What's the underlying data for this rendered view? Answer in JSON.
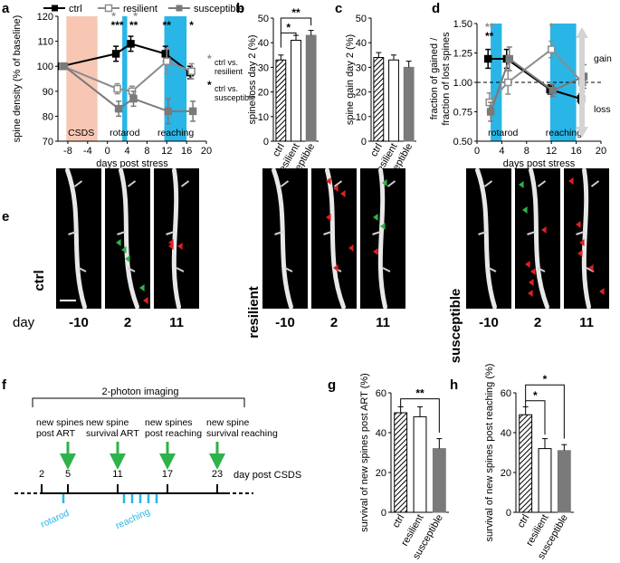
{
  "panels": {
    "a": "a",
    "b": "b",
    "c": "c",
    "d": "d",
    "e": "e",
    "f": "f",
    "g": "g",
    "h": "h"
  },
  "legend": {
    "ctrl": "ctrl",
    "resilient": "resilient",
    "susceptible": "susceptible"
  },
  "colors": {
    "ctrl": "#000000",
    "resilient": "#8c8c8c",
    "susceptible": "#7a7a7a",
    "csds": "#f7c7b4",
    "rotarod": "#29b6e6",
    "reaching": "#29b6e6",
    "green_arrow": "#2db34a",
    "red_arrow": "#e02020"
  },
  "chart_data": [
    {
      "panel": "a",
      "type": "line",
      "xlabel": "days post stress",
      "ylabel": "spine density (% of baseline)",
      "xticks": [
        -8,
        -4,
        0,
        4,
        8,
        12,
        16,
        20
      ],
      "yticks": [
        70,
        80,
        90,
        100,
        110,
        120
      ],
      "xlim": [
        -10,
        20
      ],
      "ylim": [
        70,
        120
      ],
      "x": [
        -9,
        2,
        5,
        12,
        17
      ],
      "series": [
        {
          "name": "ctrl",
          "values": [
            100,
            105,
            109,
            105,
            97.5
          ],
          "errors": [
            0,
            3,
            3,
            3,
            2.5
          ]
        },
        {
          "name": "resilient",
          "values": [
            100,
            91,
            90,
            102,
            98
          ],
          "errors": [
            0,
            2,
            2,
            5,
            3
          ]
        },
        {
          "name": "susceptible",
          "values": [
            100,
            83,
            87,
            82,
            82
          ],
          "errors": [
            0,
            3,
            3,
            5,
            4
          ]
        }
      ],
      "regions": [
        {
          "label": "CSDS",
          "from": -8.3,
          "to": -2
        },
        {
          "label": "rotarod",
          "from": 3,
          "to": 4
        },
        {
          "label": "reaching",
          "from": 11.5,
          "to": 16
        }
      ],
      "significance": {
        "gray": [
          "*",
          "*"
        ],
        "black": [
          "***",
          "**",
          "**",
          "*"
        ],
        "note_gray": "* ctrl vs. resilient",
        "note_black": "* ctrl vs. susceptible"
      }
    },
    {
      "panel": "b",
      "type": "bar",
      "ylabel": "spine loss day 2 (%)",
      "categories": [
        "ctrl",
        "resilient",
        "susceptible"
      ],
      "values": [
        33,
        41,
        43
      ],
      "errors": [
        2,
        2,
        2
      ],
      "ylim": [
        0,
        50
      ],
      "yticks": [
        0,
        10,
        20,
        30,
        40,
        50
      ],
      "significance": [
        "*",
        "**"
      ]
    },
    {
      "panel": "c",
      "type": "bar",
      "ylabel": "spine gain day 2 (%)",
      "categories": [
        "ctrl",
        "resilient",
        "susceptible"
      ],
      "values": [
        34,
        33,
        30
      ],
      "errors": [
        2,
        2,
        2.5
      ],
      "ylim": [
        0,
        50
      ],
      "yticks": [
        0,
        10,
        20,
        30,
        40,
        50
      ]
    },
    {
      "panel": "d",
      "type": "line",
      "xlabel": "days post stress",
      "ylabel": "fraction of gained / fraction of lost spines",
      "xticks": [
        0,
        4,
        8,
        12,
        16,
        20
      ],
      "yticks": [
        0.5,
        0.75,
        1.0,
        1.25,
        1.5
      ],
      "ylim": [
        0.5,
        1.5
      ],
      "x": [
        2,
        5,
        12,
        17
      ],
      "series": [
        {
          "name": "ctrl",
          "values": [
            1.2,
            1.2,
            0.94,
            0.86
          ],
          "errors": [
            0.08,
            0.08,
            0.04,
            0.04
          ]
        },
        {
          "name": "resilient",
          "values": [
            0.83,
            1.0,
            1.28,
            1.0
          ],
          "errors": [
            0.08,
            0.1,
            0.07,
            0.08
          ]
        },
        {
          "name": "susceptible",
          "values": [
            0.75,
            1.2,
            0.93,
            1.05
          ],
          "errors": [
            0.08,
            0.1,
            0.05,
            0.1
          ]
        }
      ],
      "arrow_labels": {
        "up": "gain",
        "down": "loss"
      },
      "region_labels": {
        "rotarod": "rotarod",
        "reaching": "reaching"
      },
      "significance": {
        "gray": [
          "**",
          "*"
        ],
        "black": [
          "**"
        ]
      }
    },
    {
      "panel": "g",
      "type": "bar",
      "ylabel": "survival of new spines post ART (%)",
      "categories": [
        "ctrl",
        "resilient",
        "susceptible"
      ],
      "values": [
        50,
        48,
        32
      ],
      "errors": [
        3,
        5,
        5
      ],
      "ylim": [
        0,
        60
      ],
      "yticks": [
        0,
        20,
        40,
        60
      ],
      "significance": [
        "**"
      ]
    },
    {
      "panel": "h",
      "type": "bar",
      "ylabel": "survival of new spines post reaching (%)",
      "categories": [
        "ctrl",
        "resilient",
        "susceptible"
      ],
      "values": [
        49,
        32,
        31
      ],
      "errors": [
        4,
        5,
        3
      ],
      "ylim": [
        0,
        60
      ],
      "yticks": [
        0,
        20,
        40,
        60
      ],
      "significance": [
        "*",
        "*"
      ]
    }
  ],
  "panel_e": {
    "groups": [
      "ctrl",
      "resilient",
      "susceptible"
    ],
    "day_label": "day",
    "days": [
      "-10",
      "2",
      "11"
    ]
  },
  "panel_f": {
    "title": "2-photon imaging",
    "events": [
      {
        "label": "new spines\npost ART",
        "day": "5"
      },
      {
        "label": "new spine\nsurvival ART",
        "day": "11"
      },
      {
        "label": "new spines\npost reaching",
        "day": "17"
      },
      {
        "label": "new spine\nsurvival reaching",
        "day": "23"
      }
    ],
    "start_day": "2",
    "axis_label": "day post CSDS",
    "rotarod": "rotarod",
    "reaching": "reaching"
  }
}
